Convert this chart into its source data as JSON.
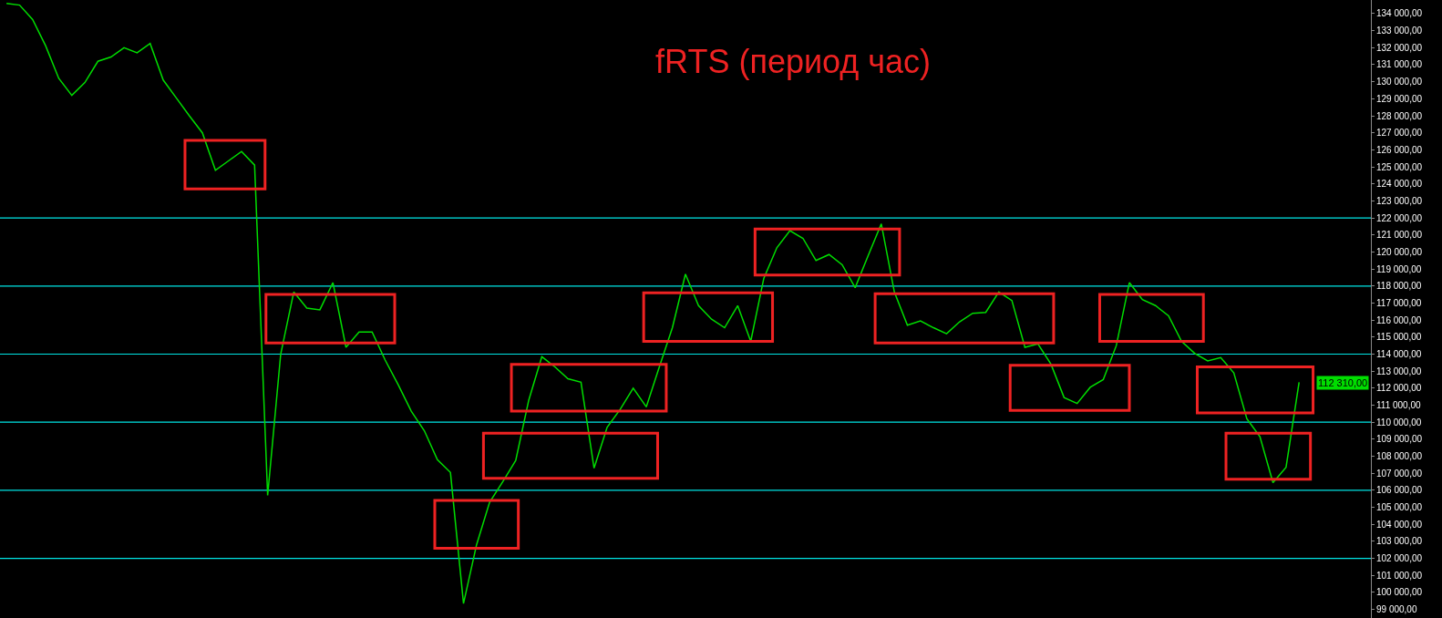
{
  "chart_data": {
    "type": "line",
    "title": "fRTS (период час)",
    "ylim": [
      98500,
      134800
    ],
    "yticks": [
      {
        "value": 99000,
        "label": "99 000,00"
      },
      {
        "value": 100000,
        "label": "100 000,00"
      },
      {
        "value": 101000,
        "label": "101 000,00"
      },
      {
        "value": 102000,
        "label": "102 000,00"
      },
      {
        "value": 103000,
        "label": "103 000,00"
      },
      {
        "value": 104000,
        "label": "104 000,00"
      },
      {
        "value": 105000,
        "label": "105 000,00"
      },
      {
        "value": 106000,
        "label": "106 000,00"
      },
      {
        "value": 107000,
        "label": "107 000,00"
      },
      {
        "value": 108000,
        "label": "108 000,00"
      },
      {
        "value": 109000,
        "label": "109 000,00"
      },
      {
        "value": 110000,
        "label": "110 000,00"
      },
      {
        "value": 111000,
        "label": "111 000,00"
      },
      {
        "value": 112000,
        "label": "112 000,00"
      },
      {
        "value": 113000,
        "label": "113 000,00"
      },
      {
        "value": 114000,
        "label": "114 000,00"
      },
      {
        "value": 115000,
        "label": "115 000,00"
      },
      {
        "value": 116000,
        "label": "116 000,00"
      },
      {
        "value": 117000,
        "label": "117 000,00"
      },
      {
        "value": 118000,
        "label": "118 000,00"
      },
      {
        "value": 119000,
        "label": "119 000,00"
      },
      {
        "value": 120000,
        "label": "120 000,00"
      },
      {
        "value": 121000,
        "label": "121 000,00"
      },
      {
        "value": 122000,
        "label": "122 000,00"
      },
      {
        "value": 123000,
        "label": "123 000,00"
      },
      {
        "value": 124000,
        "label": "124 000,00"
      },
      {
        "value": 125000,
        "label": "125 000,00"
      },
      {
        "value": 126000,
        "label": "126 000,00"
      },
      {
        "value": 127000,
        "label": "127 000,00"
      },
      {
        "value": 128000,
        "label": "128 000,00"
      },
      {
        "value": 129000,
        "label": "129 000,00"
      },
      {
        "value": 130000,
        "label": "130 000,00"
      },
      {
        "value": 131000,
        "label": "131 000,00"
      },
      {
        "value": 132000,
        "label": "132 000,00"
      },
      {
        "value": 133000,
        "label": "133 000,00"
      },
      {
        "value": 134000,
        "label": "134 000,00"
      }
    ],
    "tick_labels": "y",
    "grid": false,
    "categories": [
      null,
      null,
      null,
      null,
      null,
      null,
      null,
      null,
      null,
      null,
      null,
      null,
      null,
      null,
      null,
      null,
      null,
      null,
      null,
      null,
      null,
      null,
      null,
      null,
      null,
      null,
      null,
      null,
      null,
      null,
      null,
      null,
      null,
      null,
      null,
      null,
      null,
      null,
      null,
      null,
      null,
      null,
      null,
      null,
      null,
      null,
      null,
      null,
      null,
      null,
      null,
      null,
      null,
      null,
      null,
      null,
      null,
      null,
      null,
      null,
      null,
      null,
      null,
      null,
      null,
      null,
      null,
      null,
      null,
      null,
      null,
      null,
      null,
      null,
      null,
      null,
      null,
      null,
      null,
      null,
      null,
      null,
      null,
      null,
      null,
      null,
      null,
      null,
      null,
      null,
      null,
      null,
      null,
      null,
      null,
      null,
      null,
      null,
      null,
      null
    ],
    "series": [
      {
        "color": "#00dd00",
        "values": [
          134600,
          134500,
          133650,
          132100,
          130200,
          129200,
          129950,
          131200,
          131450,
          132000,
          131700,
          132250,
          130100,
          129050,
          128000,
          127000,
          124800,
          125350,
          125900,
          125100,
          105700,
          114000,
          117650,
          116700,
          116600,
          118200,
          114400,
          115300,
          115300,
          113650,
          112200,
          110650,
          109500,
          107800,
          107050,
          99350,
          102800,
          105300,
          106500,
          107750,
          111300,
          113850,
          113250,
          112550,
          112350,
          107300,
          109700,
          110750,
          112000,
          110900,
          113250,
          115550,
          118700,
          116850,
          116050,
          115550,
          116850,
          114750,
          118450,
          120250,
          121250,
          120800,
          119500,
          119850,
          119250,
          117900,
          119800,
          121650,
          117650,
          115700,
          115950,
          115550,
          115200,
          115900,
          116400,
          116450,
          117650,
          117150,
          114400,
          114600,
          113400,
          111450,
          111100,
          112050,
          112500,
          114500,
          118200,
          117200,
          116850,
          116250,
          114750,
          114050,
          113600,
          113800,
          112900,
          110200,
          109150,
          106450,
          107350,
          112350
        ]
      }
    ],
    "ref_lines": [
      {
        "axis": "y",
        "value": 102000,
        "color": "#00e5e5"
      },
      {
        "axis": "y",
        "value": 106000,
        "color": "#00e5e5"
      },
      {
        "axis": "y",
        "value": 110000,
        "color": "#00e5e5"
      },
      {
        "axis": "y",
        "value": 114000,
        "color": "#00e5e5"
      },
      {
        "axis": "y",
        "value": 118000,
        "color": "#00e5e5"
      },
      {
        "axis": "y",
        "value": 122000,
        "color": "#00e5e5"
      }
    ],
    "annotations": [
      "112 310,00"
    ]
  }
}
